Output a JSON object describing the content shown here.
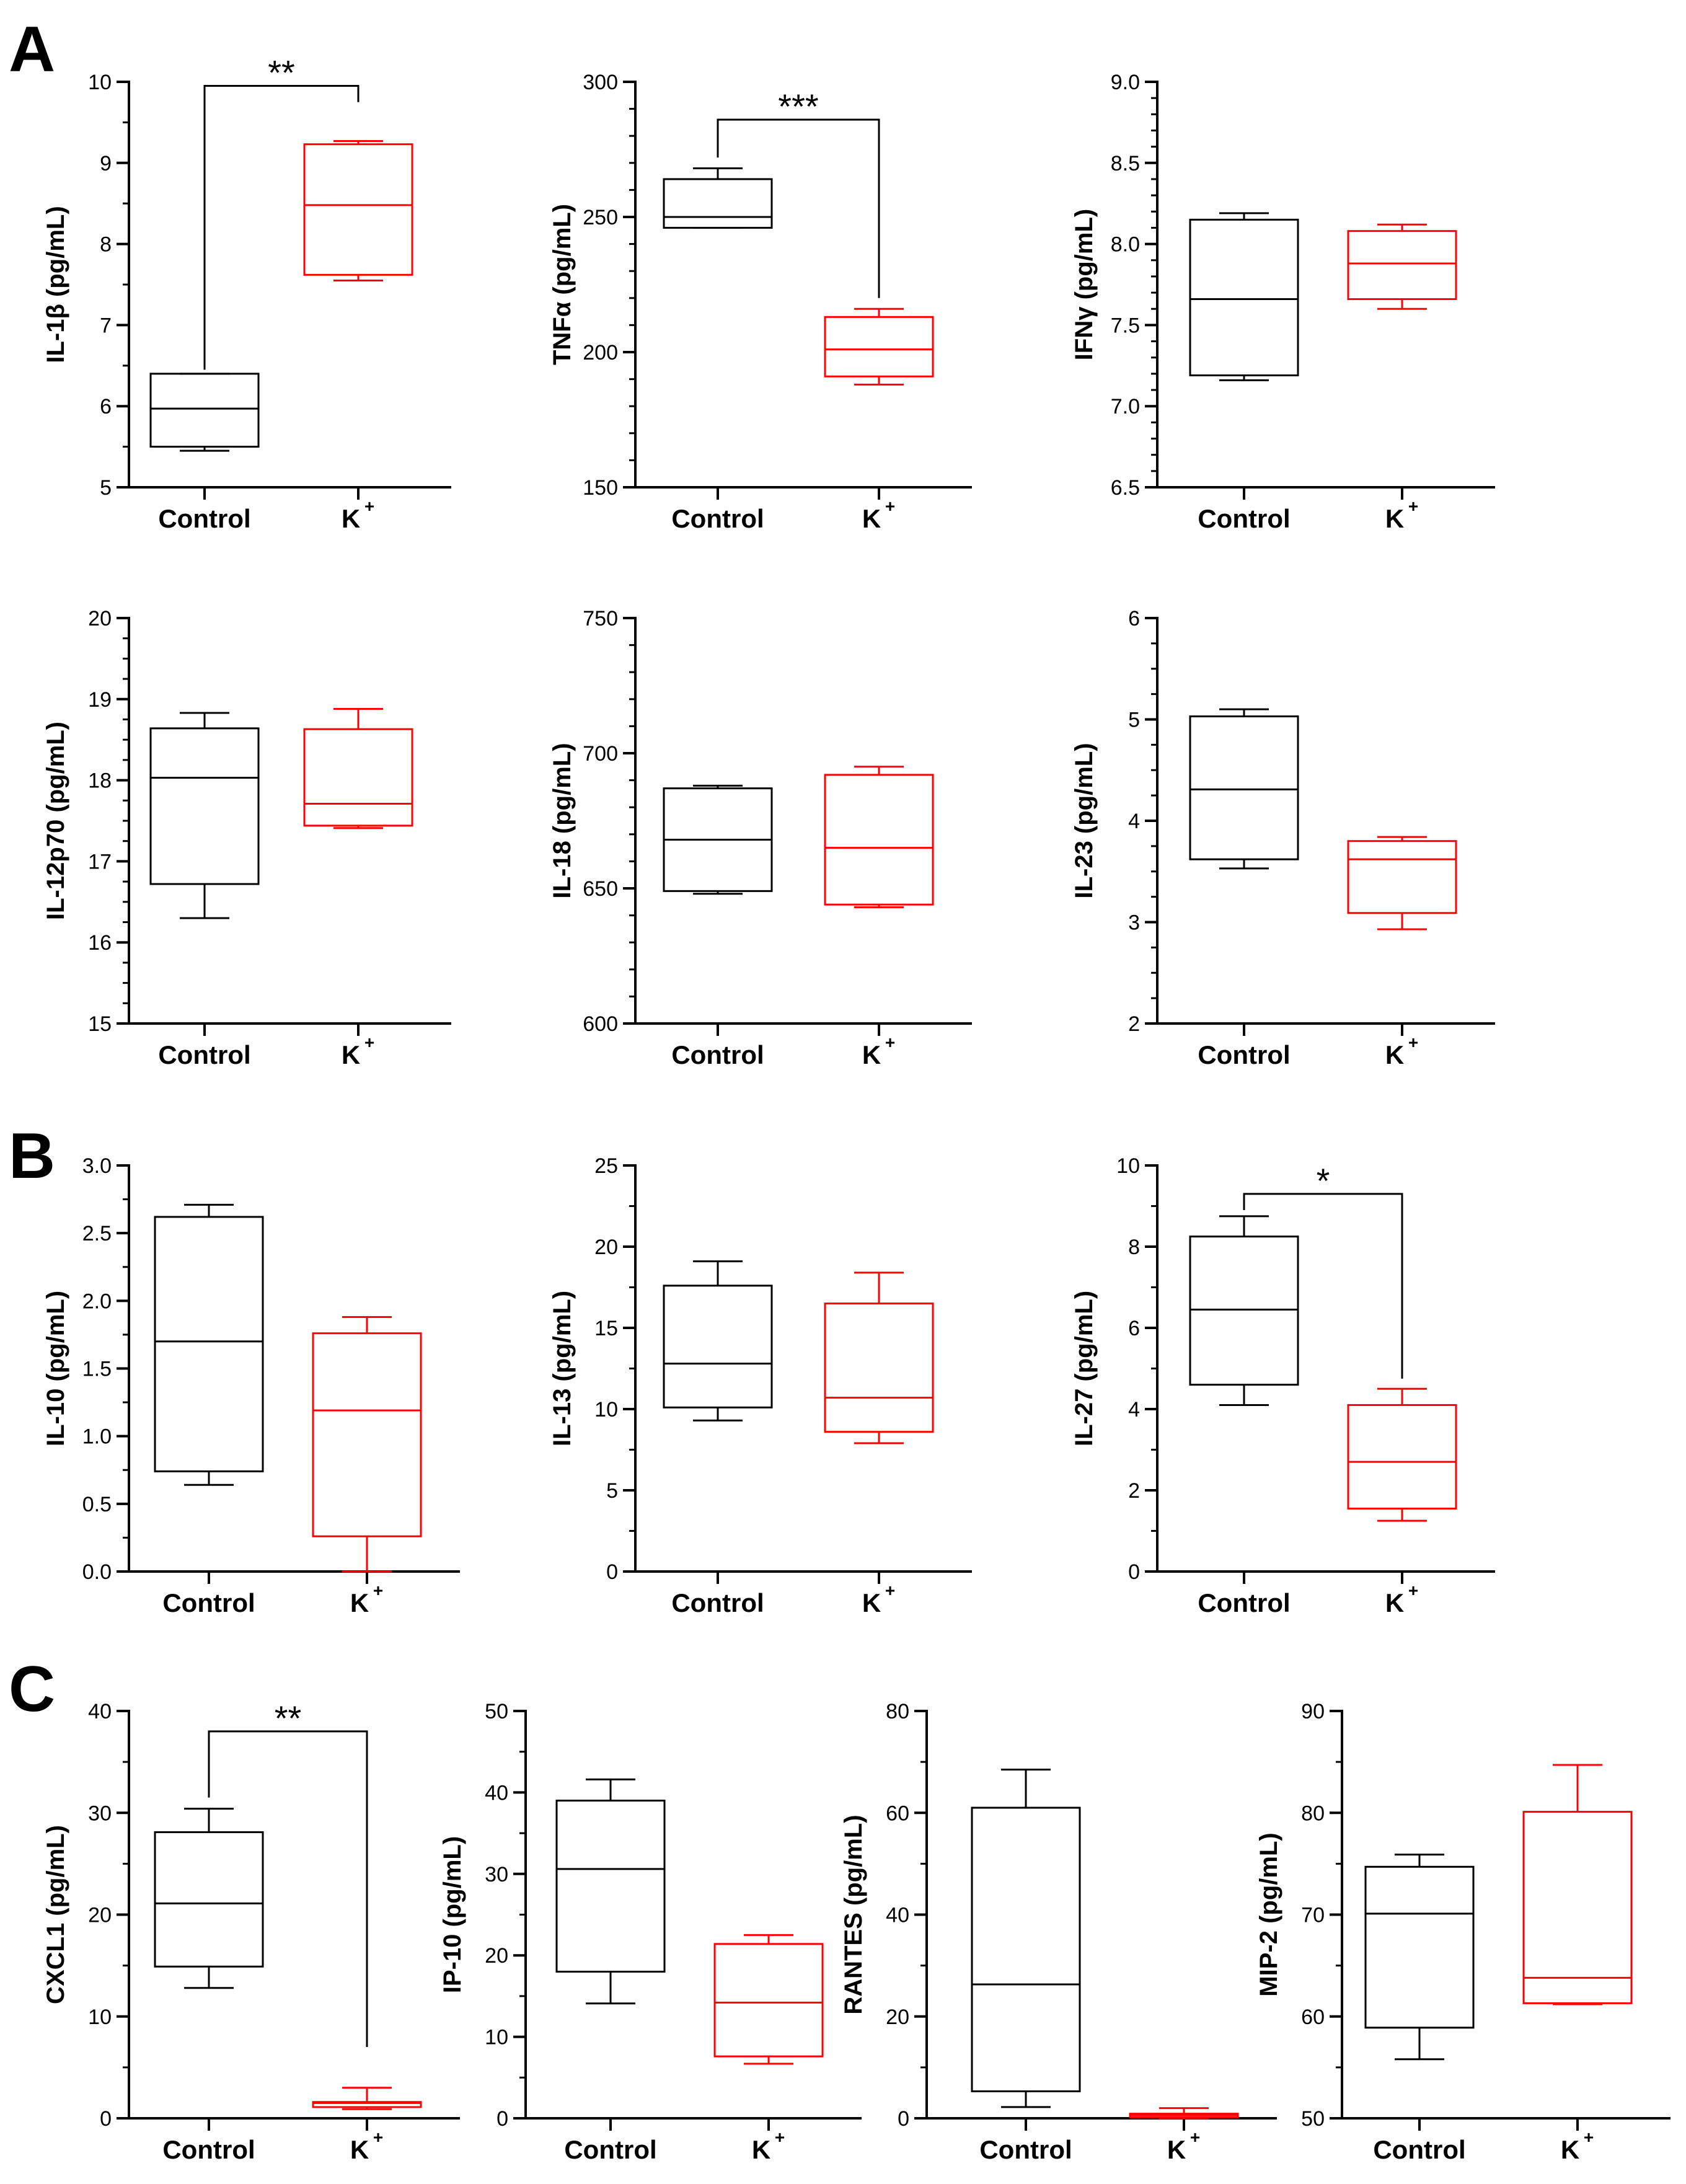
{
  "figure": {
    "panel_letters": [
      "A",
      "B",
      "C"
    ],
    "group_labels": [
      "Control",
      "K"
    ],
    "group_superscript": "+",
    "colors": {
      "control": "#000000",
      "treatment": "#ff0000",
      "axis": "#000000",
      "bracket": "#000000"
    }
  },
  "chart_data": [
    {
      "type": "box",
      "panel": "A",
      "ylabel": "IL-1β (pg/mL)",
      "ylim": [
        5,
        10
      ],
      "major_ticks": [
        5,
        6,
        7,
        8,
        9,
        10
      ],
      "tick_labels": [
        "5",
        "6",
        "7",
        "8",
        "9",
        "10"
      ],
      "minor_step": 0.5,
      "categories": [
        "Control",
        "K+"
      ],
      "boxes": [
        {
          "group": "Control",
          "min": 5.45,
          "q1": 5.5,
          "median": 5.97,
          "q3": 6.4,
          "max": 6.4
        },
        {
          "group": "K+",
          "min": 7.55,
          "q1": 7.62,
          "median": 8.48,
          "q3": 9.23,
          "max": 9.27
        }
      ],
      "significance": {
        "label": "**",
        "level": 9.95,
        "from_group": "Control",
        "from_value": 6.45,
        "to_group": "K+",
        "to_value": 9.75
      }
    },
    {
      "type": "box",
      "panel": "A",
      "ylabel": "TNFα (pg/mL)",
      "ylim": [
        150,
        300
      ],
      "major_ticks": [
        150,
        200,
        250,
        300
      ],
      "tick_labels": [
        "150",
        "200",
        "250",
        "300"
      ],
      "minor_step": 10,
      "categories": [
        "Control",
        "K+"
      ],
      "boxes": [
        {
          "group": "Control",
          "min": 246,
          "q1": 246,
          "median": 250,
          "q3": 264,
          "max": 268
        },
        {
          "group": "K+",
          "min": 188,
          "q1": 191,
          "median": 201,
          "q3": 213,
          "max": 216
        }
      ],
      "significance": {
        "label": "***",
        "level": 286,
        "from_group": "Control",
        "from_value": 272,
        "to_group": "K+",
        "to_value": 220
      }
    },
    {
      "type": "box",
      "panel": "A",
      "ylabel": "IFNγ (pg/mL)",
      "ylim": [
        6.5,
        9.0
      ],
      "major_ticks": [
        6.5,
        7.0,
        7.5,
        8.0,
        8.5,
        9.0
      ],
      "tick_labels": [
        "6.5",
        "7.0",
        "7.5",
        "8.0",
        "8.5",
        "9.0"
      ],
      "minor_step": 0.1,
      "categories": [
        "Control",
        "K+"
      ],
      "boxes": [
        {
          "group": "Control",
          "min": 7.16,
          "q1": 7.19,
          "median": 7.66,
          "q3": 8.15,
          "max": 8.19
        },
        {
          "group": "K+",
          "min": 7.6,
          "q1": 7.66,
          "median": 7.88,
          "q3": 8.08,
          "max": 8.12
        }
      ]
    },
    {
      "type": "box",
      "panel": "A",
      "ylabel": "IL-12p70 (pg/mL)",
      "ylim": [
        15,
        20
      ],
      "major_ticks": [
        15,
        16,
        17,
        18,
        19,
        20
      ],
      "tick_labels": [
        "15",
        "16",
        "17",
        "18",
        "19",
        "20"
      ],
      "minor_step": 0.25,
      "categories": [
        "Control",
        "K+"
      ],
      "boxes": [
        {
          "group": "Control",
          "min": 16.3,
          "q1": 16.72,
          "median": 18.03,
          "q3": 18.64,
          "max": 18.83
        },
        {
          "group": "K+",
          "min": 17.41,
          "q1": 17.44,
          "median": 17.71,
          "q3": 18.63,
          "max": 18.88
        }
      ]
    },
    {
      "type": "box",
      "panel": "A",
      "ylabel": "IL-18 (pg/mL)",
      "ylim": [
        600,
        750
      ],
      "major_ticks": [
        600,
        650,
        700,
        750
      ],
      "tick_labels": [
        "600",
        "650",
        "700",
        "750"
      ],
      "minor_step": 10,
      "categories": [
        "Control",
        "K+"
      ],
      "boxes": [
        {
          "group": "Control",
          "min": 648,
          "q1": 649,
          "median": 668,
          "q3": 687,
          "max": 688
        },
        {
          "group": "K+",
          "min": 643,
          "q1": 644,
          "median": 665,
          "q3": 692,
          "max": 695
        }
      ]
    },
    {
      "type": "box",
      "panel": "A",
      "ylabel": "IL-23 (pg/mL)",
      "ylim": [
        2,
        6
      ],
      "major_ticks": [
        2,
        3,
        4,
        5,
        6
      ],
      "tick_labels": [
        "2",
        "3",
        "4",
        "5",
        "6"
      ],
      "minor_step": 0.25,
      "categories": [
        "Control",
        "K+"
      ],
      "boxes": [
        {
          "group": "Control",
          "min": 3.53,
          "q1": 3.62,
          "median": 4.31,
          "q3": 5.03,
          "max": 5.1
        },
        {
          "group": "K+",
          "min": 2.93,
          "q1": 3.09,
          "median": 3.62,
          "q3": 3.8,
          "max": 3.84
        }
      ]
    },
    {
      "type": "box",
      "panel": "B",
      "ylabel": "IL-10 (pg/mL)",
      "ylim": [
        0,
        3.0
      ],
      "major_ticks": [
        0,
        0.5,
        1.0,
        1.5,
        2.0,
        2.5,
        3.0
      ],
      "tick_labels": [
        "0.0",
        "0.5",
        "1.0",
        "1.5",
        "2.0",
        "2.5",
        "3.0"
      ],
      "minor_step": 0.25,
      "categories": [
        "Control",
        "K+"
      ],
      "boxes": [
        {
          "group": "Control",
          "min": 0.64,
          "q1": 0.74,
          "median": 1.7,
          "q3": 2.62,
          "max": 2.71
        },
        {
          "group": "K+",
          "min": 0.0,
          "q1": 0.26,
          "median": 1.19,
          "q3": 1.76,
          "max": 1.88
        }
      ]
    },
    {
      "type": "box",
      "panel": "B",
      "ylabel": "IL-13 (pg/mL)",
      "ylim": [
        0,
        25
      ],
      "major_ticks": [
        0,
        5,
        10,
        15,
        20,
        25
      ],
      "tick_labels": [
        "0",
        "5",
        "10",
        "15",
        "20",
        "25"
      ],
      "minor_step": 2.5,
      "categories": [
        "Control",
        "K+"
      ],
      "boxes": [
        {
          "group": "Control",
          "min": 9.3,
          "q1": 10.1,
          "median": 12.8,
          "q3": 17.6,
          "max": 19.1
        },
        {
          "group": "K+",
          "min": 7.9,
          "q1": 8.6,
          "median": 10.7,
          "q3": 16.5,
          "max": 18.4
        }
      ]
    },
    {
      "type": "box",
      "panel": "B",
      "ylabel": "IL-27 (pg/mL)",
      "ylim": [
        0,
        10
      ],
      "major_ticks": [
        0,
        2,
        4,
        6,
        8,
        10
      ],
      "tick_labels": [
        "0",
        "2",
        "4",
        "6",
        "8",
        "10"
      ],
      "minor_step": 1,
      "categories": [
        "Control",
        "K+"
      ],
      "boxes": [
        {
          "group": "Control",
          "min": 4.1,
          "q1": 4.6,
          "median": 6.45,
          "q3": 8.25,
          "max": 8.75
        },
        {
          "group": "K+",
          "min": 1.25,
          "q1": 1.55,
          "median": 2.7,
          "q3": 4.1,
          "max": 4.5
        }
      ],
      "significance": {
        "label": "*",
        "level": 9.3,
        "from_group": "Control",
        "from_value": 8.9,
        "to_group": "K+",
        "to_value": 4.75
      }
    },
    {
      "type": "box",
      "panel": "C",
      "ylabel": "CXCL1 (pg/mL)",
      "ylim": [
        0,
        40
      ],
      "major_ticks": [
        0,
        10,
        20,
        30,
        40
      ],
      "tick_labels": [
        "0",
        "10",
        "20",
        "30",
        "40"
      ],
      "minor_step": 5,
      "categories": [
        "Control",
        "K+"
      ],
      "boxes": [
        {
          "group": "Control",
          "min": 12.8,
          "q1": 14.9,
          "median": 21.1,
          "q3": 28.1,
          "max": 30.4
        },
        {
          "group": "K+",
          "min": 0.9,
          "q1": 1.1,
          "median": 1.5,
          "q3": 1.6,
          "max": 3.0
        }
      ],
      "significance": {
        "label": "**",
        "level": 38.0,
        "from_group": "Control",
        "from_value": 31.5,
        "to_group": "K+",
        "to_value": 7.0
      }
    },
    {
      "type": "box",
      "panel": "C",
      "ylabel": "IP-10 (pg/mL)",
      "ylim": [
        0,
        50
      ],
      "major_ticks": [
        0,
        10,
        20,
        30,
        40,
        50
      ],
      "tick_labels": [
        "0",
        "10",
        "20",
        "30",
        "40",
        "50"
      ],
      "minor_step": 5,
      "categories": [
        "Control",
        "K+"
      ],
      "boxes": [
        {
          "group": "Control",
          "min": 14.1,
          "q1": 18.0,
          "median": 30.6,
          "q3": 39.0,
          "max": 41.6
        },
        {
          "group": "K+",
          "min": 6.7,
          "q1": 7.6,
          "median": 14.2,
          "q3": 21.4,
          "max": 22.5
        }
      ]
    },
    {
      "type": "box",
      "panel": "C",
      "ylabel": "RANTES (pg/mL)",
      "ylim": [
        0,
        80
      ],
      "major_ticks": [
        0,
        20,
        40,
        60,
        80
      ],
      "tick_labels": [
        "0",
        "20",
        "40",
        "60",
        "80"
      ],
      "minor_step": 10,
      "categories": [
        "Control",
        "K+"
      ],
      "boxes": [
        {
          "group": "Control",
          "min": 2.2,
          "q1": 5.3,
          "median": 26.3,
          "q3": 61.0,
          "max": 68.5
        },
        {
          "group": "K+",
          "min": 0.0,
          "q1": 0.2,
          "median": 0.6,
          "q3": 0.9,
          "max": 2.0
        }
      ]
    },
    {
      "type": "box",
      "panel": "C",
      "ylabel": "MIP-2 (pg/mL)",
      "ylim": [
        50,
        90
      ],
      "major_ticks": [
        50,
        60,
        70,
        80,
        90
      ],
      "tick_labels": [
        "50",
        "60",
        "70",
        "80",
        "90"
      ],
      "minor_step": 5,
      "categories": [
        "Control",
        "K+"
      ],
      "boxes": [
        {
          "group": "Control",
          "min": 55.8,
          "q1": 58.9,
          "median": 70.1,
          "q3": 74.7,
          "max": 75.9
        },
        {
          "group": "K+",
          "min": 61.2,
          "q1": 61.3,
          "median": 63.8,
          "q3": 80.1,
          "max": 84.7
        }
      ]
    }
  ]
}
